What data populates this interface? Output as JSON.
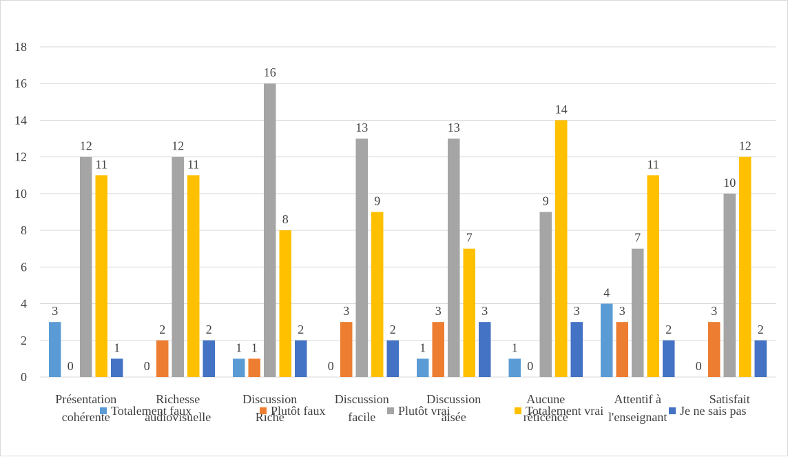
{
  "chart_data": {
    "type": "bar",
    "categories": [
      [
        "Présentation",
        "cohérente"
      ],
      [
        "Richesse",
        "audiovisuelle"
      ],
      [
        "Discussion",
        "Riche"
      ],
      [
        "Discussion",
        "facile"
      ],
      [
        "Discussion",
        "aisée"
      ],
      [
        "Aucune",
        "réticence"
      ],
      [
        "Attentif à",
        "l'enseignant"
      ],
      [
        "Satisfait"
      ]
    ],
    "series": [
      {
        "name": "Totalement faux",
        "color": "#5B9BD5",
        "values": [
          3,
          0,
          1,
          0,
          1,
          1,
          4,
          0
        ]
      },
      {
        "name": "Plutôt faux",
        "color": "#ED7D31",
        "values": [
          0,
          2,
          1,
          3,
          3,
          0,
          3,
          3
        ]
      },
      {
        "name": "Plutôt vrai",
        "color": "#A5A5A5",
        "values": [
          12,
          12,
          16,
          13,
          13,
          9,
          7,
          10
        ]
      },
      {
        "name": "Totalement vrai",
        "color": "#FFC000",
        "values": [
          11,
          11,
          8,
          9,
          7,
          14,
          11,
          12
        ]
      },
      {
        "name": "Je ne sais pas",
        "color": "#4472C4",
        "values": [
          1,
          2,
          2,
          2,
          3,
          3,
          2,
          2
        ]
      }
    ],
    "yticks": [
      "0",
      "2",
      "4",
      "6",
      "8",
      "10",
      "12",
      "14",
      "16",
      "18"
    ],
    "ylim": [
      0,
      18
    ],
    "title": "",
    "xlabel": "",
    "ylabel": "",
    "grid": true,
    "legend": "bottom",
    "gridColor": "#d9d9d9",
    "textColor": "#404040"
  }
}
